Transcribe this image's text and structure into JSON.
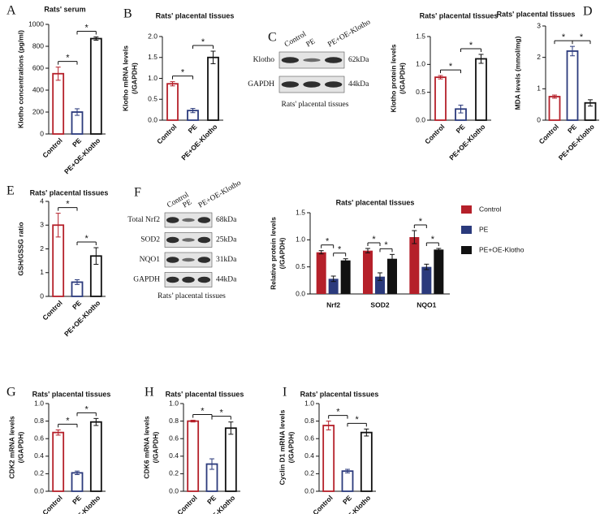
{
  "chart_data": [
    {
      "type": "bar",
      "panel": "A",
      "title": "Rats' serum",
      "ylabel": [
        "Klotho concentrations (pg/ml)"
      ],
      "categories": [
        "Control",
        "PE",
        "PE+OE-Klotho"
      ],
      "values": [
        550,
        200,
        870
      ],
      "errors": [
        60,
        30,
        15
      ],
      "colors": [
        "#b5202a",
        "#2b3a7c",
        "#111111"
      ],
      "ylim": [
        0,
        1000
      ],
      "yticks": [
        0,
        200,
        400,
        600,
        800,
        1000
      ],
      "significance": [
        "*",
        "*"
      ]
    },
    {
      "type": "bar",
      "panel": "B",
      "title": "Rats' placental tissues",
      "ylabel": [
        "Klotho mRNA levels",
        "(/GAPDH)"
      ],
      "categories": [
        "Control",
        "PE",
        "PE+OE-Klotho"
      ],
      "values": [
        0.87,
        0.23,
        1.5
      ],
      "errors": [
        0.05,
        0.05,
        0.15
      ],
      "colors": [
        "#b5202a",
        "#2b3a7c",
        "#111111"
      ],
      "ylim": [
        0,
        2
      ],
      "yticks": [
        {
          "value": 0,
          "label": "0.0"
        },
        0.5,
        {
          "value": 1,
          "label": "1.0"
        },
        1.5,
        {
          "value": 2,
          "label": "2.0"
        }
      ],
      "significance": [
        "*",
        "*"
      ]
    },
    {
      "type": "bar",
      "title": "Rats' placental tissues",
      "ylabel": [
        "Klotho protein levels",
        "(/GAPDH)"
      ],
      "categories": [
        "Control",
        "PE",
        "PE+OE-Klotho"
      ],
      "values": [
        0.77,
        0.2,
        1.1
      ],
      "errors": [
        0.03,
        0.07,
        0.08
      ],
      "colors": [
        "#b5202a",
        "#2b3a7c",
        "#111111"
      ],
      "ylim": [
        0,
        1.5
      ],
      "yticks": [
        {
          "value": 0,
          "label": "0.0"
        },
        0.5,
        {
          "value": 1,
          "label": "1.0"
        },
        1.5
      ],
      "significance": [
        "*",
        "*"
      ]
    },
    {
      "type": "bar",
      "panel": "D",
      "title": "Rats' placental tissues",
      "ylabel": [
        "MDA levels (mmol/mg)"
      ],
      "categories": [
        "Control",
        "PE",
        "PE+OE-Klotho"
      ],
      "values": [
        0.75,
        2.2,
        0.55
      ],
      "errors": [
        0.05,
        0.15,
        0.1
      ],
      "colors": [
        "#b5202a",
        "#2b3a7c",
        "#111111"
      ],
      "ylim": [
        0,
        3
      ],
      "yticks": [
        0,
        1,
        2,
        3
      ],
      "significance": [
        "*",
        "*"
      ]
    },
    {
      "type": "bar",
      "panel": "E",
      "title": "Rats' placental tissues",
      "ylabel": [
        "GSH/GSSG ratio"
      ],
      "categories": [
        "Control",
        "PE",
        "PE+OE-Klotho"
      ],
      "values": [
        3.0,
        0.6,
        1.7
      ],
      "errors": [
        0.5,
        0.1,
        0.35
      ],
      "colors": [
        "#b5202a",
        "#2b3a7c",
        "#111111"
      ],
      "ylim": [
        0,
        4
      ],
      "yticks": [
        0,
        1,
        2,
        3,
        4
      ],
      "significance": [
        "*",
        "*"
      ]
    },
    {
      "type": "grouped_bar",
      "title": "Rats' placental tissues",
      "ylabel": [
        "Relative protein levels",
        "(/GAPDH)"
      ],
      "categories": [
        "Nrf2",
        "SOD2",
        "NQO1"
      ],
      "series": [
        {
          "name": "Control",
          "color": "#b5202a",
          "values": [
            0.77,
            0.8,
            1.05
          ],
          "errors": [
            0.03,
            0.04,
            0.12
          ]
        },
        {
          "name": "PE",
          "color": "#2b3a7c",
          "values": [
            0.28,
            0.32,
            0.5
          ],
          "errors": [
            0.05,
            0.07,
            0.05
          ]
        },
        {
          "name": "PE+OE-Klotho",
          "color": "#111111",
          "values": [
            0.62,
            0.65,
            0.82
          ],
          "errors": [
            0.03,
            0.08,
            0.02
          ]
        }
      ],
      "ylim": [
        0,
        1.5
      ],
      "yticks": [
        {
          "value": 0,
          "label": "0.0"
        },
        0.5,
        {
          "value": 1,
          "label": "1.0"
        },
        1.5
      ],
      "significance": [
        [
          "*",
          "*"
        ],
        [
          "*",
          "*"
        ],
        [
          "*",
          "*"
        ]
      ]
    },
    {
      "type": "bar",
      "panel": "G",
      "title": "Rats' placental tissues",
      "ylabel": [
        "CDK2 mRNA levels",
        "(/GAPDH)"
      ],
      "categories": [
        "Control",
        "PE",
        "PE+OE-Klotho"
      ],
      "values": [
        0.67,
        0.21,
        0.79
      ],
      "errors": [
        0.03,
        0.02,
        0.04
      ],
      "colors": [
        "#b5202a",
        "#2b3a7c",
        "#111111"
      ],
      "ylim": [
        0,
        1
      ],
      "yticks": [
        {
          "value": 0,
          "label": "0.0"
        },
        0.2,
        0.4,
        0.6,
        0.8,
        {
          "value": 1,
          "label": "1.0"
        }
      ],
      "significance": [
        "*",
        "*"
      ]
    },
    {
      "type": "bar",
      "panel": "H",
      "title": "Rats' placental tissues",
      "ylabel": [
        "CDK6 mRNA levels",
        "(/GAPDH)"
      ],
      "categories": [
        "Control",
        "PE",
        "PE+OE-Klotho"
      ],
      "values": [
        0.8,
        0.31,
        0.72
      ],
      "errors": [
        0.01,
        0.06,
        0.07
      ],
      "colors": [
        "#b5202a",
        "#2b3a7c",
        "#111111"
      ],
      "ylim": [
        0,
        1
      ],
      "yticks": [
        {
          "value": 0,
          "label": "0.0"
        },
        0.2,
        0.4,
        0.6,
        0.8,
        {
          "value": 1,
          "label": "1.0"
        }
      ],
      "significance": [
        "*",
        "*"
      ]
    },
    {
      "type": "bar",
      "panel": "I",
      "title": "Rats' placental tissues",
      "ylabel": [
        "Cyclin D1 mRNA levels",
        "(/GAPDH)"
      ],
      "categories": [
        "Control",
        "PE",
        "PE+OE-Klotho"
      ],
      "values": [
        0.75,
        0.23,
        0.67
      ],
      "errors": [
        0.05,
        0.02,
        0.04
      ],
      "colors": [
        "#b5202a",
        "#2b3a7c",
        "#111111"
      ],
      "ylim": [
        0,
        1
      ],
      "yticks": [
        {
          "value": 0,
          "label": "0.0"
        },
        0.2,
        0.4,
        0.6,
        0.8,
        {
          "value": 1,
          "label": "1.0"
        }
      ],
      "significance": [
        "*",
        "*"
      ]
    }
  ],
  "blots": [
    {
      "panel": "C",
      "lanes": [
        "Control",
        "PE",
        "PE+OE-Klotho"
      ],
      "rows": [
        {
          "name": "Klotho",
          "size": "62kDa"
        },
        {
          "name": "GAPDH",
          "size": "44kDa"
        }
      ],
      "caption": "Rats' placental tissues"
    },
    {
      "panel": "F",
      "lanes": [
        "Control",
        "PE",
        "PE+OE-Klotho"
      ],
      "rows": [
        {
          "name": "Total Nrf2",
          "size": "68kDa"
        },
        {
          "name": "SOD2",
          "size": "25kDa"
        },
        {
          "name": "NQO1",
          "size": "31kDa"
        },
        {
          "name": "GAPDH",
          "size": "44kDa"
        }
      ],
      "caption": "Rats’ placental tissues"
    }
  ]
}
